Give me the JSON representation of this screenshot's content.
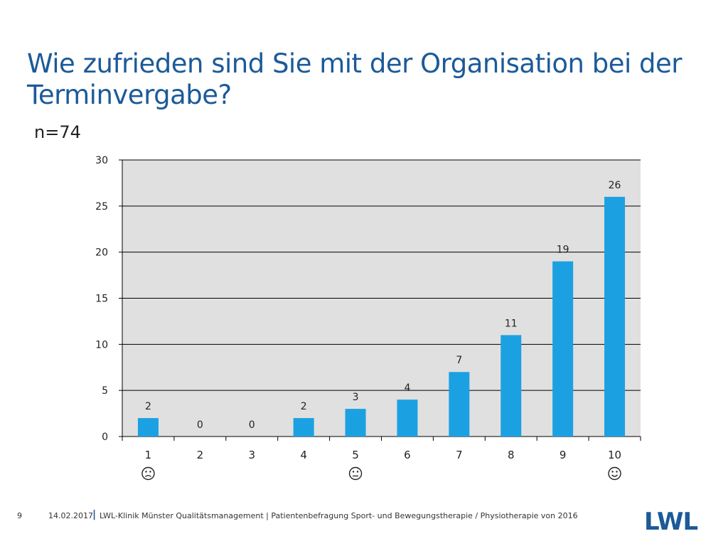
{
  "title": {
    "line1": "Wie zufrieden sind Sie mit der Organisation bei der",
    "line2": "Terminvergabe?"
  },
  "subtitle": "n=74",
  "chart_data": {
    "type": "bar",
    "categories": [
      "1",
      "2",
      "3",
      "4",
      "5",
      "6",
      "7",
      "8",
      "9",
      "10"
    ],
    "values": [
      2,
      0,
      0,
      2,
      3,
      4,
      7,
      11,
      19,
      26
    ],
    "ylim": [
      0,
      30
    ],
    "yticks": [
      0,
      5,
      10,
      15,
      20,
      25,
      30
    ],
    "xlabel": "",
    "ylabel": "",
    "grid": true,
    "bar_color": "#1ba1e2",
    "plot_bg": "#e0e0e0",
    "emoji_markers": [
      {
        "category": "1",
        "glyph": "☹",
        "meaning": "sad"
      },
      {
        "category": "5",
        "glyph": "😐",
        "meaning": "neutral"
      },
      {
        "category": "10",
        "glyph": "☺",
        "meaning": "happy"
      }
    ]
  },
  "footer": {
    "page": "9",
    "date": "14.02.2017",
    "separator": "|",
    "description": "LWL-Klinik Münster Qualitätsmanagement  |  Patientenbefragung Sport- und Bewegungstherapie / Physiotherapie von 2016",
    "logo": "LWL"
  },
  "colors": {
    "title": "#1c5a98",
    "bar": "#1ba1e2",
    "plot_bg": "#e0e0e0"
  }
}
